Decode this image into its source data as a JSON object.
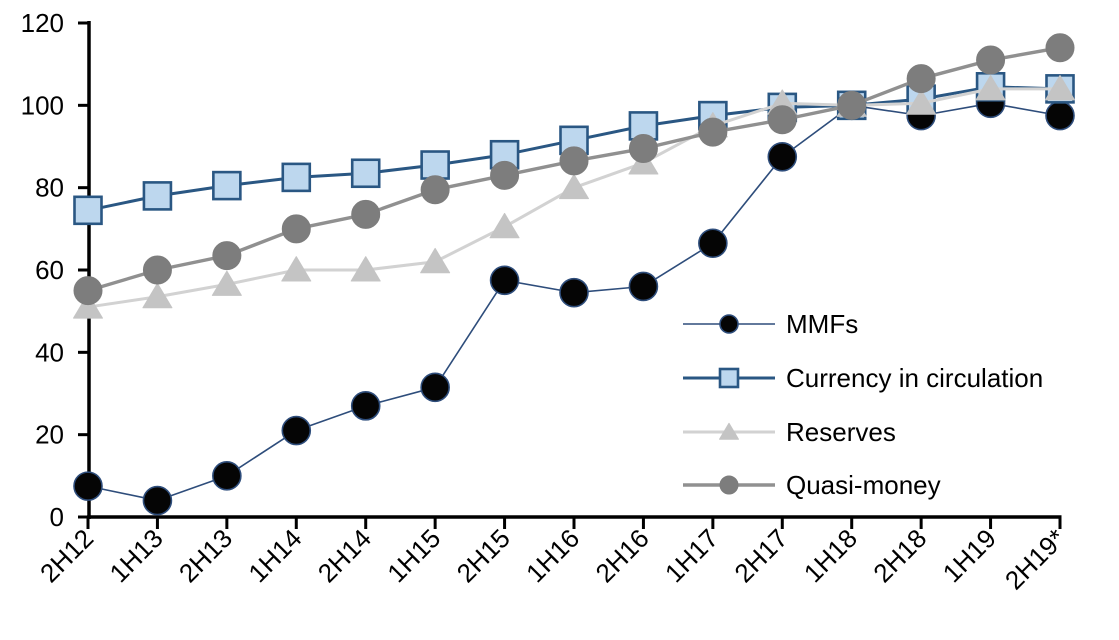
{
  "chart_data": {
    "type": "line",
    "title": "",
    "xlabel": "",
    "ylabel": "",
    "grid": false,
    "legend_position": "inside-right",
    "ylim": [
      0,
      120
    ],
    "y_ticks": [
      0,
      20,
      40,
      60,
      80,
      100,
      120
    ],
    "categories": [
      "2H12",
      "1H13",
      "2H13",
      "1H14",
      "2H14",
      "1H15",
      "2H15",
      "1H16",
      "2H16",
      "1H17",
      "2H17",
      "1H18",
      "2H18",
      "1H19",
      "2H19*"
    ],
    "series": [
      {
        "name": "MMFs",
        "marker": "circle",
        "marker_color": "#050505",
        "marker_outline": "#2e4d7b",
        "marker_outline_width": 1.6,
        "marker_size": 28,
        "line_color": "#2e4d7b",
        "line_width": 1.6,
        "values": [
          7.5,
          4,
          10,
          21,
          27,
          31.5,
          57.5,
          54.5,
          56,
          66.5,
          87.5,
          100,
          97.5,
          100.5,
          97.5
        ]
      },
      {
        "name": "Currency in circulation",
        "marker": "square",
        "marker_color": "#bdd7ee",
        "marker_outline": "#2a5783",
        "marker_outline_width": 2.6,
        "marker_size": 27,
        "line_color": "#2a5783",
        "line_width": 3,
        "values": [
          74.5,
          78,
          80.5,
          82.5,
          83.5,
          85.5,
          88,
          91.5,
          95,
          97.5,
          99.5,
          100,
          101.5,
          104.5,
          104
        ]
      },
      {
        "name": "Reserves",
        "marker": "triangle",
        "marker_color": "#c4c4c4",
        "marker_outline": "#c4c4c4",
        "marker_outline_width": 1,
        "marker_size": 29,
        "line_color": "#d2d2d2",
        "line_width": 3,
        "values": [
          51,
          53.5,
          56.5,
          60,
          60,
          62,
          70.5,
          80,
          86,
          95,
          100.5,
          100,
          100.5,
          104,
          104
        ]
      },
      {
        "name": "Quasi-money",
        "marker": "circle",
        "marker_color": "#7d7d7d",
        "marker_outline": "#7d7d7d",
        "marker_outline_width": 1,
        "marker_size": 28,
        "line_color": "#909090",
        "line_width": 3.4,
        "values": [
          55,
          60,
          63.5,
          70,
          73.5,
          79.5,
          83,
          86.5,
          89.5,
          93.5,
          96.5,
          100,
          106.5,
          111,
          114
        ]
      }
    ],
    "legend_labels": [
      "MMFs",
      "Currency in circulation",
      "Reserves",
      "Quasi-money"
    ]
  },
  "colors": {
    "background": "#ffffff",
    "axis": "#000000",
    "tick_text": "#000000"
  }
}
